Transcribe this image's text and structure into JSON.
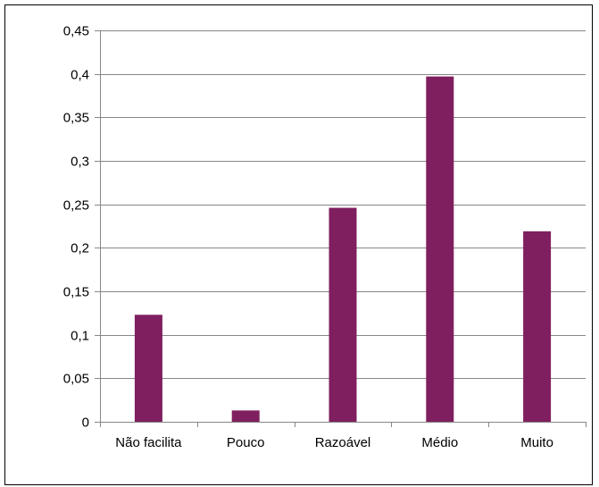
{
  "chart_data": {
    "type": "bar",
    "categories": [
      "Não facilita",
      "Pouco",
      "Razoável",
      "Médio",
      "Muito"
    ],
    "values": [
      0.123,
      0.013,
      0.246,
      0.397,
      0.219
    ],
    "ylim": [
      0,
      0.45
    ],
    "yticks": [
      "0",
      "0,05",
      "0,1",
      "0,15",
      "0,2",
      "0,25",
      "0,3",
      "0,35",
      "0,4",
      "0,45"
    ],
    "ytick_values": [
      0,
      0.05,
      0.1,
      0.15,
      0.2,
      0.25,
      0.3,
      0.35,
      0.4,
      0.45
    ],
    "grid": true,
    "legend": "none",
    "bar_color": "#7f1f5f",
    "gridline_color": "#878787",
    "axis_color": "#878787"
  }
}
